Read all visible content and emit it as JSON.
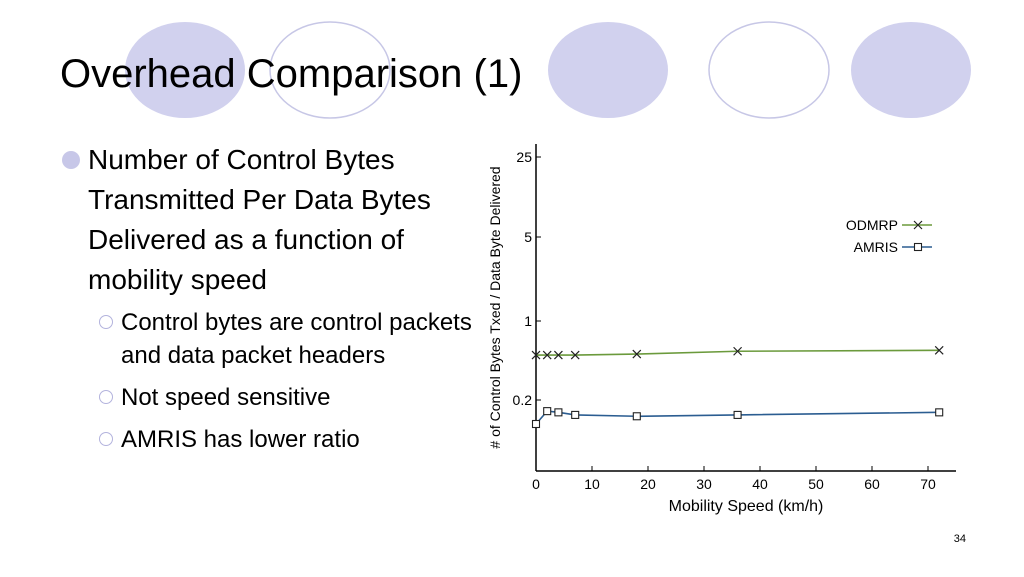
{
  "slide": {
    "title": "Overhead Comparison (1)",
    "page_number": "34"
  },
  "bullets": {
    "main": "Number of Control Bytes Transmitted Per Data Bytes Delivered as a function of mobility speed",
    "sub": [
      "Control bytes are control packets and data packet headers",
      "Not speed sensitive",
      "AMRIS has lower ratio"
    ]
  },
  "colors": {
    "circle_fill": "#d1d1ee",
    "circle_outline": "#c7c7e6",
    "bullet": "#c7c7e8",
    "odmrp": "#6b9a3c",
    "amris": "#2b5d91"
  },
  "chart_data": {
    "type": "line",
    "xlabel": "Mobility Speed (km/h)",
    "ylabel": "# of Control Bytes Txed / Data Byte Delivered",
    "xlim": [
      0,
      75
    ],
    "x_ticks": [
      "0",
      "10",
      "20",
      "30",
      "40",
      "50",
      "60",
      "70"
    ],
    "y_scale": "log",
    "y_ticks": [
      "0.2",
      "1",
      "5",
      "25"
    ],
    "legend_position": "top-right",
    "series": [
      {
        "name": "ODMRP",
        "marker": "x",
        "x": [
          0,
          2,
          4,
          7,
          18,
          36,
          72
        ],
        "y": [
          0.5,
          0.5,
          0.5,
          0.5,
          0.51,
          0.54,
          0.55
        ]
      },
      {
        "name": "AMRIS",
        "marker": "square",
        "x": [
          0,
          2,
          4,
          7,
          18,
          36,
          72
        ],
        "y": [
          0.1,
          0.145,
          0.14,
          0.13,
          0.125,
          0.13,
          0.14
        ]
      }
    ]
  }
}
